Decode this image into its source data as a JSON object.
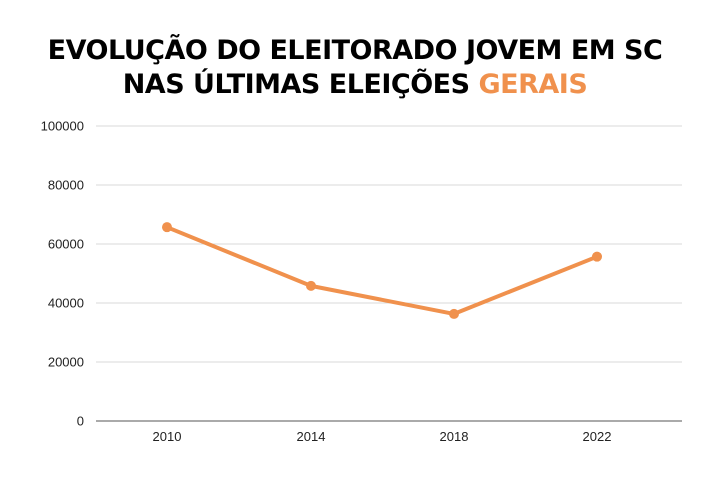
{
  "title": {
    "line1": "EVOLUÇÃO DO ELEITORADO JOVEM EM SC",
    "line2_main": "NAS ÚLTIMAS ELEIÇÕES",
    "line2_accent": "GERAIS"
  },
  "colors": {
    "series": "#f0914d",
    "grid": "#d9d9d9",
    "axis": "#555555",
    "title": "#000000"
  },
  "chart_data": {
    "type": "line",
    "title": "EVOLUÇÃO DO ELEITORADO JOVEM EM SC NAS ÚLTIMAS ELEIÇÕES GERAIS",
    "xlabel": "",
    "ylabel": "",
    "categories": [
      "2010",
      "2014",
      "2018",
      "2022"
    ],
    "series": [
      {
        "values": [
          65700,
          45800,
          36300,
          55700
        ]
      }
    ],
    "ylim": [
      0,
      100000
    ],
    "yticks": [
      0,
      20000,
      40000,
      60000,
      80000,
      100000
    ],
    "grid": true,
    "legend": "none"
  }
}
